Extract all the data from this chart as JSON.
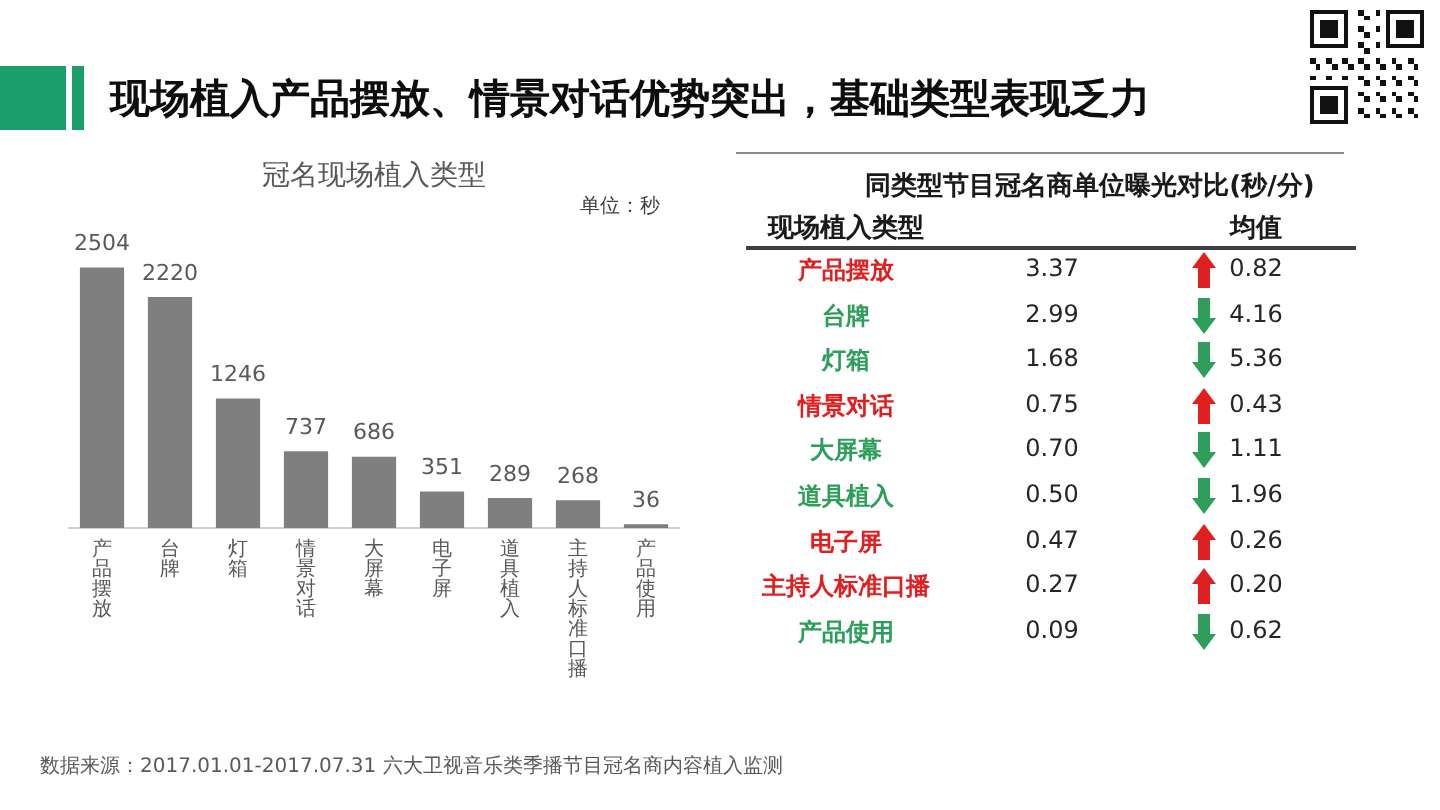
{
  "chart_data": [
    {
      "type": "bar",
      "title": "现场植入产品摆放、情景对话优势突出，基础类型表现乏力",
      "subtitle": "冠名现场植入类型",
      "ylabel": "单位：秒",
      "annotations": [
        "数据来源：2017.01.01-2017.07.31 六大卫视音乐类季播节目冠名商内容植入监测"
      ],
      "categories": [
        "产品摆放",
        "台牌",
        "灯箱",
        "情景对话",
        "大屏幕",
        "电子屏",
        "道具植入",
        "主持人标准口播",
        "产品使用"
      ],
      "values": [
        2504,
        2220,
        1246,
        737,
        686,
        351,
        289,
        268,
        36
      ],
      "color": "#7f7f7f",
      "data_labels": true
    },
    {
      "type": "other",
      "title": "同类型节目冠名商单位曝光对比(秒/分)",
      "ylabel": "现场植入类型",
      "categories": [
        "产品摆放",
        "台牌",
        "灯箱",
        "情景对话",
        "大屏幕",
        "道具植入",
        "电子屏",
        "主持人标准口播",
        "产品使用"
      ],
      "colors": [
        "#e02020",
        "#2e9e5b",
        "#2e9e5b",
        "#e02020",
        "#2e9e5b",
        "#2e9e5b",
        "#e02020",
        "#e02020",
        "#2e9e5b"
      ],
      "series": [
        {
          "color": "#262626",
          "values": [
            3.37,
            2.99,
            1.68,
            0.75,
            0.7,
            0.5,
            0.47,
            0.27,
            0.09
          ],
          "value_labels": [
            "3.37",
            "2.99",
            "1.68",
            "0.75",
            "0.70",
            "0.50",
            "0.47",
            "0.27",
            "0.09"
          ]
        },
        {
          "name": "均值",
          "color": "#262626",
          "values": [
            0.82,
            4.16,
            5.36,
            0.43,
            1.11,
            1.96,
            0.26,
            0.2,
            0.62
          ],
          "value_labels": [
            "0.82",
            "4.16",
            "5.36",
            "0.43",
            "1.11",
            "1.96",
            "0.26",
            "0.20",
            "0.62"
          ]
        }
      ]
    }
  ]
}
